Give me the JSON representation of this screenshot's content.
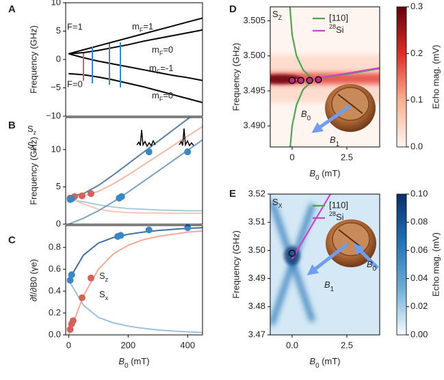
{
  "chart_data": [
    {
      "type": "line",
      "panel": "A",
      "ylabel": "Frequency (GHz)",
      "xlim": [
        -10,
        450
      ],
      "ylim": [
        -10,
        10
      ],
      "yticks": [
        {
          "value": -10,
          "label": "−10"
        },
        {
          "value": -5,
          "label": "−5"
        },
        0,
        5,
        10
      ],
      "x": [
        0,
        50,
        100,
        150,
        200,
        250,
        300,
        350,
        400,
        450
      ],
      "series": [
        {
          "color": "#000000",
          "values": [
            1,
            1.7,
            2.4,
            3.1,
            3.8,
            4.5,
            5.2,
            5.9,
            6.6,
            7.3
          ]
        },
        {
          "color": "#000000",
          "values": [
            1,
            1.2,
            1.6,
            2.1,
            2.6,
            3.2,
            3.7,
            4.2,
            4.7,
            5.2
          ]
        },
        {
          "color": "#000000",
          "values": [
            1,
            0.3,
            -0.3,
            -0.8,
            -1.3,
            -1.8,
            -2.3,
            -2.8,
            -3.2,
            -3.7
          ]
        },
        {
          "color": "#000000",
          "values": [
            -2.5,
            -2.7,
            -3.1,
            -3.6,
            -4.2,
            -4.8,
            -5.5,
            -6.2,
            -6.9,
            -7.6
          ]
        }
      ],
      "annotations": [
        {
          "text": "F=1",
          "color": "#000000"
        },
        {
          "text": "F=0",
          "color": "#000000"
        },
        {
          "text": "mF=1",
          "color": "#000000"
        },
        {
          "text": "mF=0",
          "color": "#000000"
        },
        {
          "text": "mF=-1",
          "color": "#000000"
        },
        {
          "text": "mF=0",
          "color": "#000000"
        }
      ]
    },
    {
      "type": "line",
      "panel": "B",
      "ylabel": "Frequency (GHz)",
      "xlim": [
        -10,
        450
      ],
      "ylim": [
        0,
        14.3
      ],
      "yticks": [
        0,
        5,
        10
      ],
      "x": [
        0,
        50,
        100,
        150,
        200,
        250,
        300,
        350,
        400,
        450
      ],
      "series": [
        {
          "color": "#a9c9e0",
          "values": [
            3.3,
            3.0,
            2.6,
            2.3,
            2.1,
            2.0,
            1.9,
            1.85,
            1.8,
            1.8
          ]
        },
        {
          "color": "#f4c6b8",
          "values": [
            3.5,
            2.7,
            2.0,
            1.7,
            1.55,
            1.5,
            1.5,
            1.45,
            1.45,
            1.45
          ]
        },
        {
          "color": "#f2b9a8",
          "values": [
            3.6,
            3.8,
            4.4,
            5.4,
            6.6,
            7.9,
            9.2,
            10.5,
            11.8,
            13.1
          ]
        },
        {
          "color": "#7f9fbf",
          "values": [
            0,
            0.8,
            1.8,
            3.0,
            4.3,
            5.7,
            7.1,
            8.5,
            9.9,
            11.3
          ]
        },
        {
          "color": "#5a7ea6",
          "values": [
            3.7,
            4.1,
            5.2,
            6.6,
            8.1,
            9.6,
            11.1,
            12.6,
            14.1,
            15.6
          ]
        }
      ],
      "markers": [
        {
          "color": "#d6605a",
          "x": [
            5,
            20,
            45,
            75
          ],
          "values": [
            3.5,
            3.7,
            3.8,
            4.1
          ]
        },
        {
          "color": "#3a87c8",
          "x": [
            5,
            10,
            170,
            178,
            270,
            400
          ],
          "values": [
            3.3,
            3.4,
            3.5,
            3.7,
            9.7,
            9.7
          ]
        }
      ],
      "annotations": [
        {
          "text": "Sz",
          "color": "#d6605a"
        },
        {
          "text": "Sx",
          "color": "#3a87c8"
        }
      ]
    },
    {
      "type": "line",
      "panel": "C",
      "ylabel": "∂f/∂B0 (γe)",
      "xlabel": "B0 (mT)",
      "xlim": [
        -10,
        450
      ],
      "ylim": [
        0,
        1
      ],
      "xticks": [
        0,
        200,
        400
      ],
      "yticks": [
        {
          "value": 0,
          "label": "0.0"
        },
        0.2,
        0.4,
        0.6,
        0.8
      ],
      "x": [
        0,
        50,
        100,
        150,
        200,
        250,
        300,
        350,
        400,
        450
      ],
      "series": [
        {
          "color": "#9ec0dc",
          "values": [
            0.5,
            0.27,
            0.16,
            0.11,
            0.08,
            0.06,
            0.045,
            0.035,
            0.028,
            0.022
          ]
        },
        {
          "color": "#f2a897",
          "values": [
            0,
            0.36,
            0.6,
            0.74,
            0.82,
            0.87,
            0.9,
            0.92,
            0.94,
            0.95
          ]
        },
        {
          "color": "#3f6d9c",
          "values": [
            0.5,
            0.73,
            0.84,
            0.89,
            0.92,
            0.94,
            0.955,
            0.965,
            0.975,
            0.98
          ]
        }
      ],
      "markers": [
        {
          "color": "#d6605a",
          "x": [
            5,
            10,
            15,
            45,
            75
          ],
          "values": [
            0.05,
            0.1,
            0.13,
            0.34,
            0.52
          ]
        },
        {
          "color": "#3a87c8",
          "x": [
            5,
            10,
            165,
            175,
            270,
            400
          ],
          "values": [
            0.5,
            0.55,
            0.9,
            0.91,
            0.96,
            0.98
          ]
        }
      ],
      "annotations": [
        {
          "text": "Sz",
          "color": "#d6605a"
        },
        {
          "text": "Sx",
          "color": "#3a87c8"
        }
      ]
    },
    {
      "type": "heatmap",
      "panel": "D",
      "ylabel": "Frequency (GHz)",
      "xlabel": "B0 (mT)",
      "xlim": [
        -1,
        4
      ],
      "ylim": [
        3.487,
        3.507
      ],
      "xticks": [
        0,
        2.5
      ],
      "yticks": [
        {
          "value": 3.49,
          "label": "3.490"
        },
        3.495,
        {
          "value": 3.5,
          "label": "3.500"
        },
        3.505
      ],
      "x": [
        -0.1,
        0,
        0.2,
        0.5,
        0.9,
        1.5,
        2.5,
        4
      ],
      "series": [
        {
          "name": "[110]",
          "color": "#4fa34f",
          "values": [
            3.507,
            3.503,
            3.5,
            3.498,
            3.4968,
            null,
            null,
            null
          ]
        },
        {
          "color": "#4fa34f",
          "values": [
            3.4865,
            3.49,
            3.493,
            3.4952,
            3.4964,
            null,
            null,
            null
          ]
        },
        {
          "color": "#4fa34f",
          "values": [
            null,
            null,
            null,
            null,
            3.4966,
            3.4969,
            3.4974,
            3.4982
          ]
        },
        {
          "name": "28Si",
          "color": "#cc44cc",
          "values": [
            null,
            3.4965,
            3.4966,
            3.4966,
            3.4967,
            3.497,
            3.4975,
            3.4983
          ]
        }
      ],
      "markers": [
        {
          "color": "#b0307a",
          "edgecolor": "#000000",
          "x": [
            0,
            0.4,
            0.8,
            1.2
          ],
          "values": [
            3.4965,
            3.4965,
            3.4965,
            3.4966
          ]
        }
      ],
      "annotations": [
        {
          "text": "SZ",
          "color": "#000000"
        },
        {
          "text": "B0",
          "color": "#000000"
        },
        {
          "text": "B1",
          "color": "#000000"
        }
      ],
      "colorbar_label": "Echo mag. (mV)",
      "cmap": [
        "#fff5f0",
        "#fcae91",
        "#de2d26",
        "#67000d"
      ],
      "clim": [
        0,
        0.3
      ],
      "cticks": [
        {
          "value": 0,
          "label": "0.0"
        },
        0.1,
        0.2,
        0.3
      ]
    },
    {
      "type": "heatmap",
      "panel": "E",
      "ylabel": "Frequency (GHz)",
      "xlabel": "B0 (mT)",
      "xlim": [
        -1,
        4
      ],
      "ylim": [
        3.47,
        3.52
      ],
      "xticks": [
        {
          "value": 0,
          "label": "0.0"
        },
        2.5
      ],
      "yticks": [
        3.47,
        3.48,
        3.49,
        {
          "value": 3.5,
          "label": "3.50"
        },
        3.51,
        3.52
      ],
      "x": [
        0,
        1.75,
        1.9,
        2.05,
        2.2
      ],
      "series": [
        {
          "name": "[110]",
          "color": "#4fa34f",
          "values": [
            3.4975,
            null,
            3.52,
            null,
            null
          ]
        },
        {
          "color": "#4fa34f",
          "values": [
            3.4965,
            null,
            null,
            null,
            3.47
          ]
        },
        {
          "name": "28Si",
          "color": "#cc44cc",
          "values": [
            3.497,
            3.52,
            null,
            null,
            null
          ]
        },
        {
          "color": "#cc44cc",
          "values": [
            3.497,
            null,
            null,
            3.47,
            null
          ]
        }
      ],
      "markers": [
        {
          "color": "none",
          "edgecolor": "#000000",
          "x": [
            0
          ],
          "values": [
            3.499
          ]
        }
      ],
      "annotations": [
        {
          "text": "SX",
          "color": "#000000"
        },
        {
          "text": "B0",
          "color": "#000000"
        },
        {
          "text": "B1",
          "color": "#000000"
        }
      ],
      "colorbar_label": "Echo mag. (mV)",
      "cmap": [
        "#f7fbff",
        "#6baed6",
        "#2171b5",
        "#08306b"
      ],
      "clim": [
        0,
        0.1
      ],
      "cticks": [
        {
          "value": 0,
          "label": "0.00"
        },
        {
          "value": 0.02,
          "label": "0.02"
        },
        {
          "value": 0.04,
          "label": "0.04"
        },
        {
          "value": 0.06,
          "label": "0.06"
        },
        {
          "value": 0.08,
          "label": "0.08"
        },
        {
          "value": 0.1,
          "label": "0.10"
        }
      ]
    }
  ]
}
